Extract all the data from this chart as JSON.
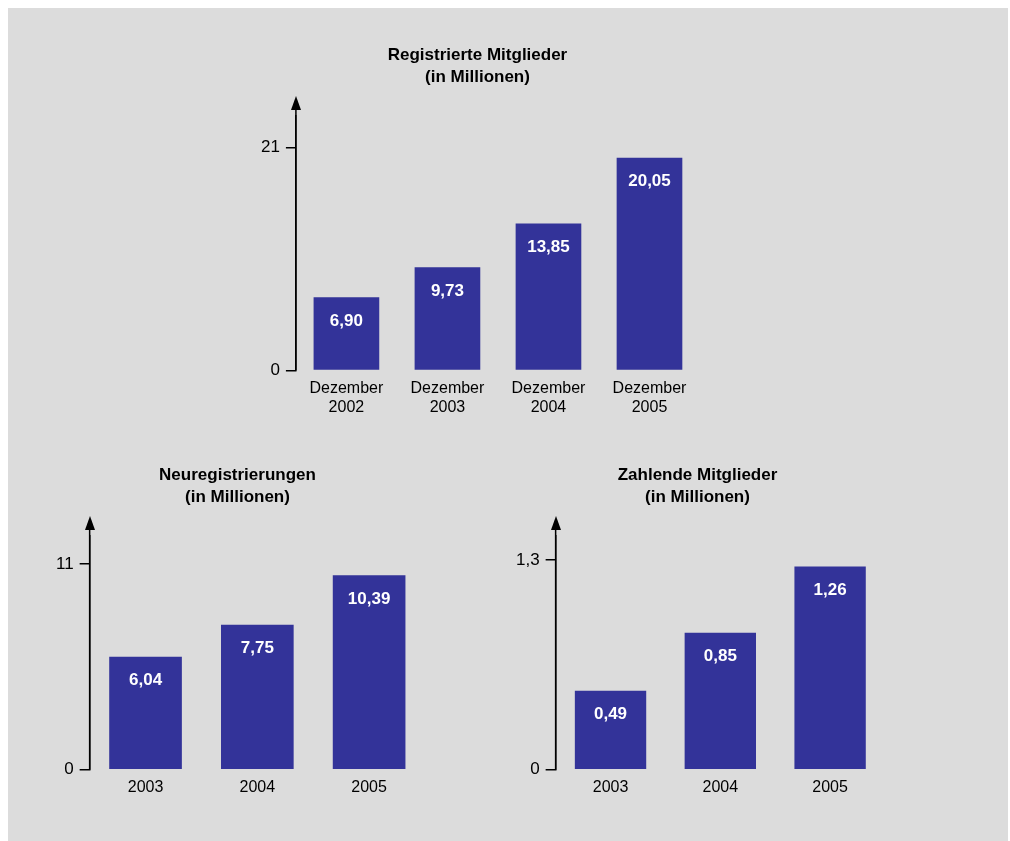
{
  "chart_data": [
    {
      "type": "bar",
      "title": "Registrierte Mitglieder",
      "subtitle": "(in Millionen)",
      "categories": [
        "Dezember 2002",
        "Dezember 2003",
        "Dezember 2004",
        "Dezember 2005"
      ],
      "values": [
        6.9,
        9.73,
        13.85,
        20.05
      ],
      "value_labels": [
        "6,90",
        "9,73",
        "13,85",
        "20,05"
      ],
      "color": "#333399",
      "ylim": [
        0,
        24
      ],
      "yticks": [
        0,
        21
      ],
      "grid": false,
      "legend": false
    },
    {
      "type": "bar",
      "title": "Neuregistrierungen",
      "subtitle": "(in Millionen)",
      "categories": [
        "2003",
        "2004",
        "2005"
      ],
      "values": [
        6.04,
        7.75,
        10.39
      ],
      "value_labels": [
        "6,04",
        "7,75",
        "10,39"
      ],
      "color": "#333399",
      "ylim": [
        0,
        12.5
      ],
      "yticks": [
        0,
        11
      ],
      "grid": false,
      "legend": false
    },
    {
      "type": "bar",
      "title": "Zahlende Mitglieder",
      "subtitle": "(in Millionen)",
      "categories": [
        "2003",
        "2004",
        "2005"
      ],
      "values": [
        0.49,
        0.85,
        1.26
      ],
      "value_labels": [
        "0,49",
        "0,85",
        "1,26"
      ],
      "color": "#333399",
      "ylim": [
        0,
        1.45
      ],
      "yticks": [
        0,
        {
          "value": 1.3,
          "label": "1,3"
        }
      ],
      "grid": false,
      "legend": false
    }
  ]
}
